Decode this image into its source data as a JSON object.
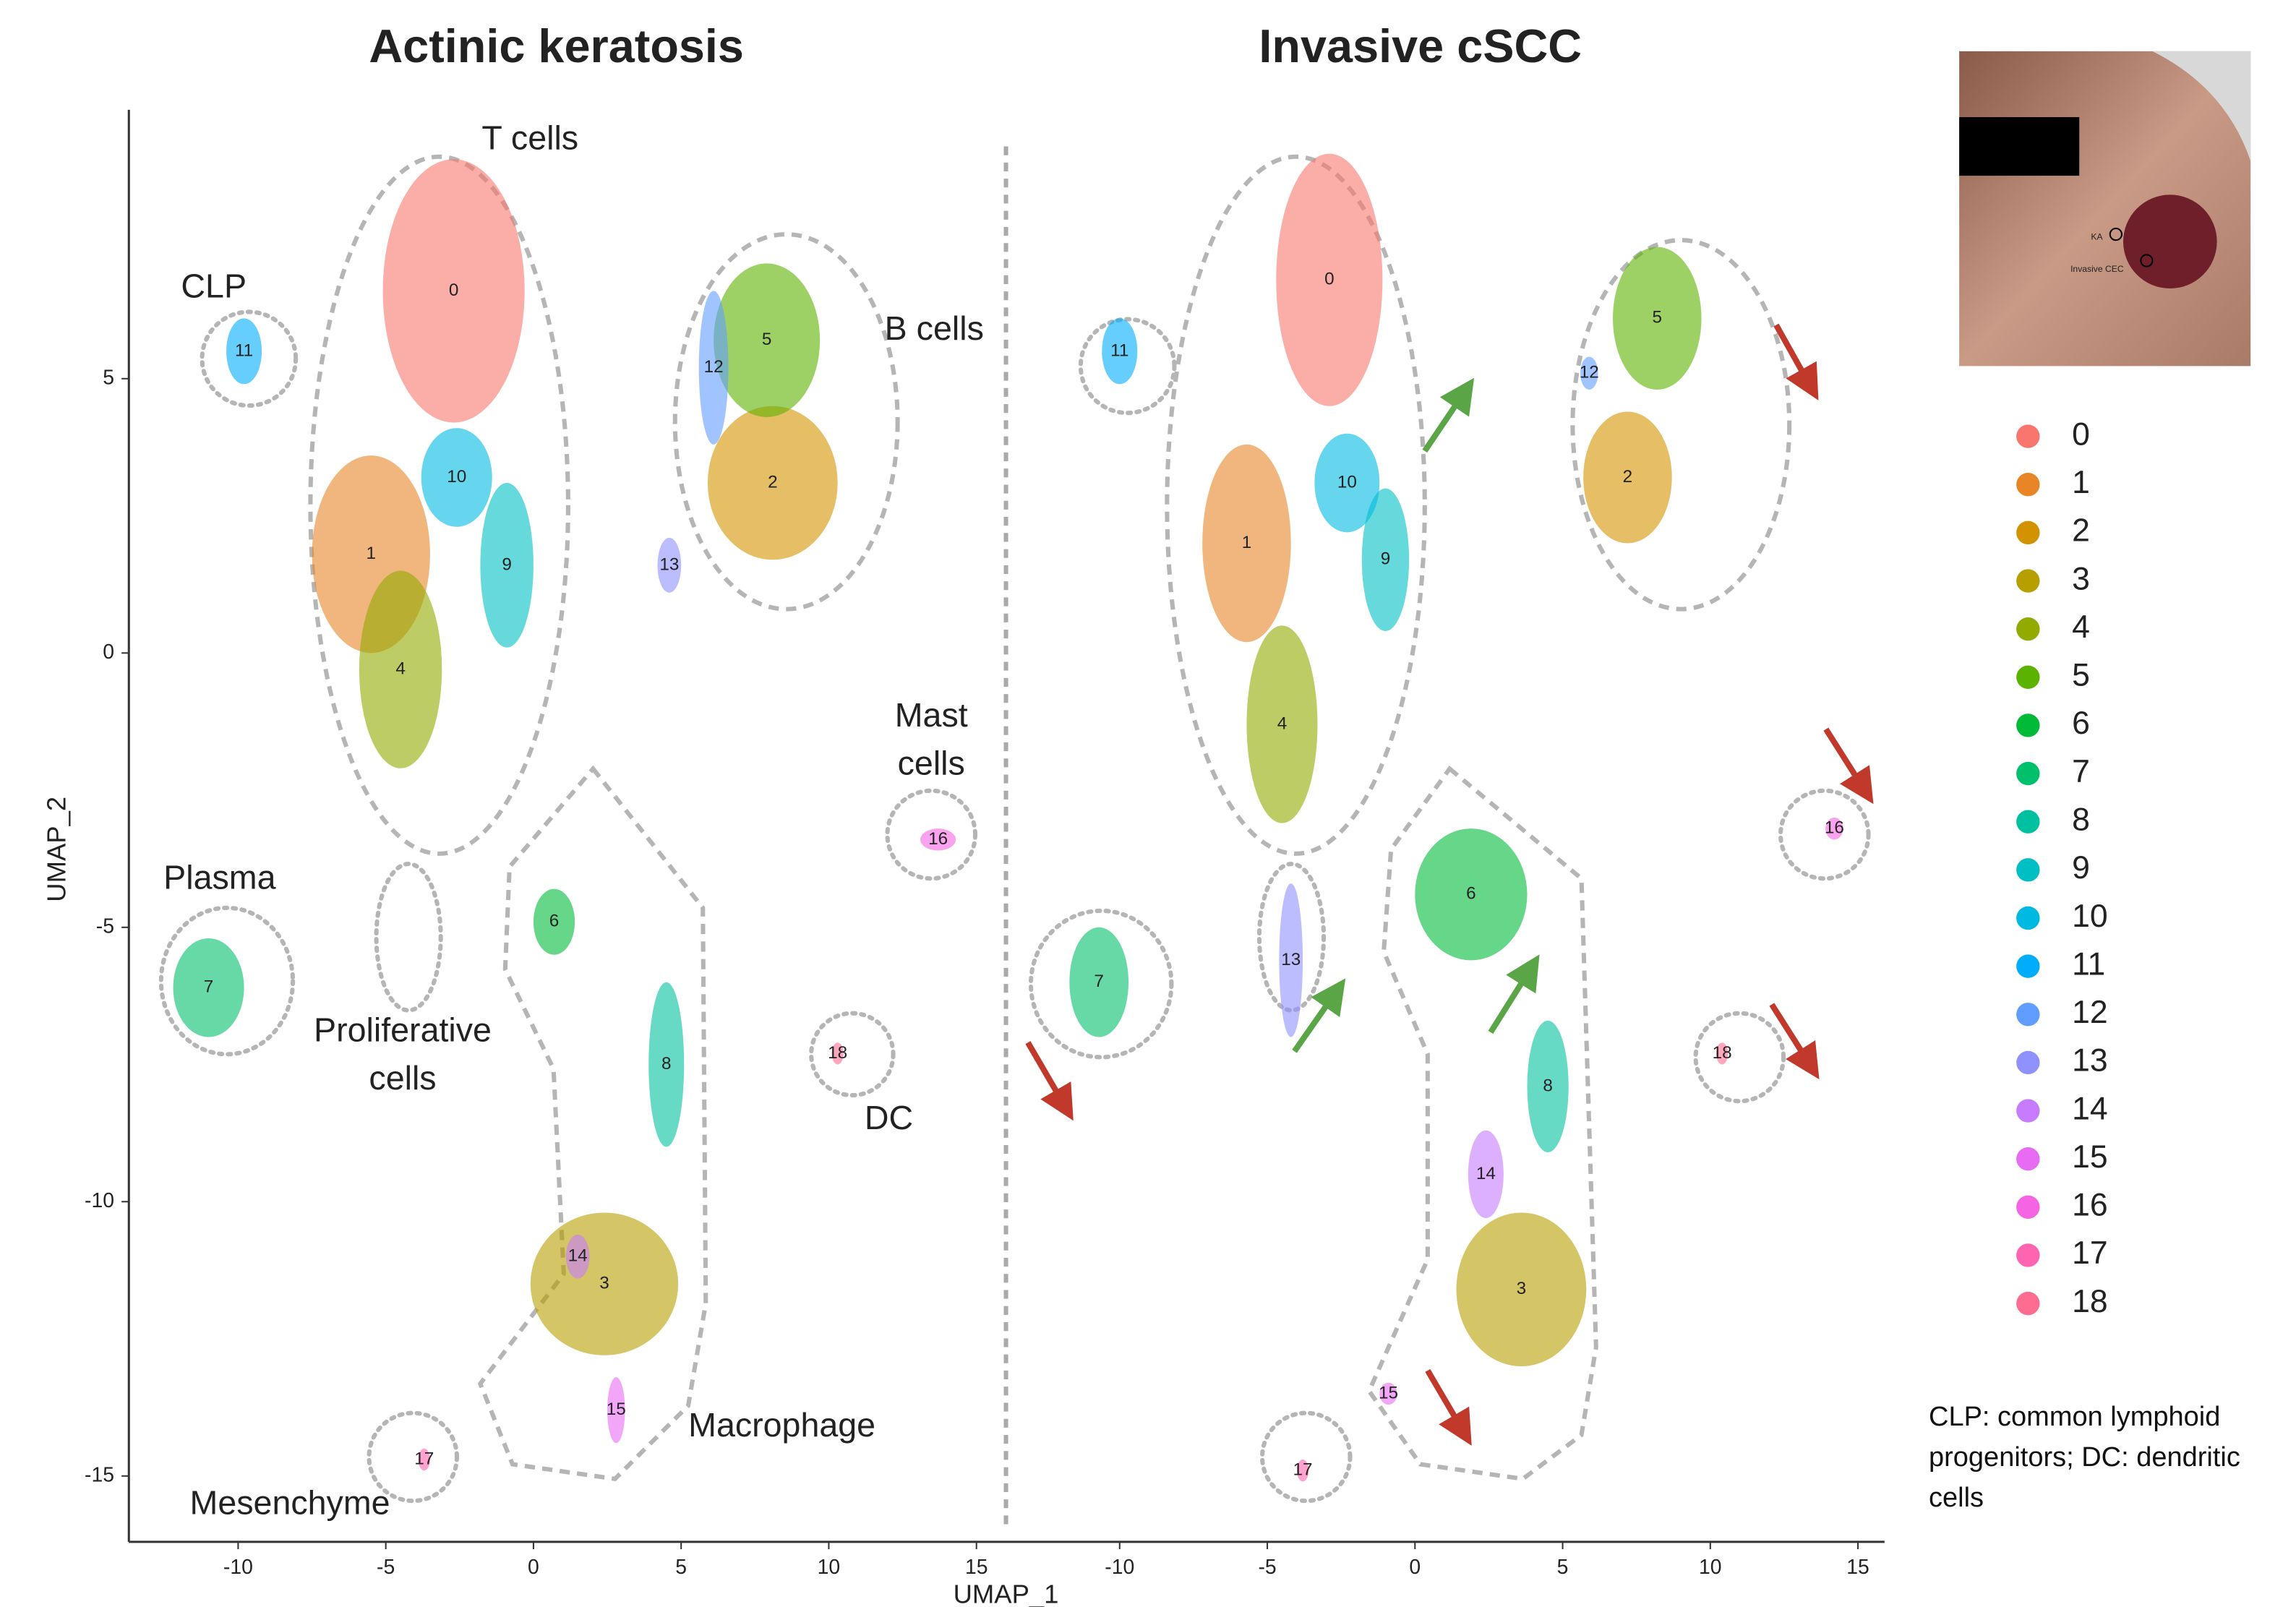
{
  "chart_data": [
    {
      "type": "scatter",
      "title": "Actinic keratosis",
      "x_label": "UMAP_1",
      "y_label": "UMAP_2",
      "xlim": [
        -13.7,
        15.9
      ],
      "ylim": [
        -16.2,
        9.9
      ],
      "xticks": [
        -10,
        -5,
        0,
        5,
        10,
        15
      ],
      "yticks": [
        5,
        0,
        -5,
        -10,
        -15
      ],
      "annotations": [
        [
          "T cells"
        ],
        [
          "CLP"
        ],
        [
          "B cells"
        ],
        [
          "Mast",
          "cells"
        ],
        [
          "Plasma"
        ],
        [
          "Proliferative",
          "cells"
        ],
        [
          "DC"
        ],
        [
          "Macrophage"
        ],
        [
          "Mesenchyme"
        ]
      ],
      "series": [
        {
          "name": "0",
          "color": "#F8766D",
          "x": [
            -2.7
          ],
          "y": [
            6.6
          ],
          "x_spread": [
            2.4
          ],
          "y_spread": [
            2.4
          ]
        },
        {
          "name": "1",
          "color": "#E88526",
          "x": [
            -5.5
          ],
          "y": [
            1.8
          ],
          "x_spread": [
            2.0
          ],
          "y_spread": [
            1.8
          ]
        },
        {
          "name": "2",
          "color": "#D39200",
          "x": [
            8.1
          ],
          "y": [
            3.1
          ],
          "x_spread": [
            2.2
          ],
          "y_spread": [
            1.4
          ]
        },
        {
          "name": "3",
          "color": "#B79F00",
          "x": [
            2.4
          ],
          "y": [
            -11.5
          ],
          "x_spread": [
            2.5
          ],
          "y_spread": [
            1.3
          ]
        },
        {
          "name": "4",
          "color": "#93AA00",
          "x": [
            -4.5
          ],
          "y": [
            -0.3
          ],
          "x_spread": [
            1.4
          ],
          "y_spread": [
            1.8
          ]
        },
        {
          "name": "5",
          "color": "#5BB300",
          "x": [
            7.9
          ],
          "y": [
            5.7
          ],
          "x_spread": [
            1.8
          ],
          "y_spread": [
            1.4
          ]
        },
        {
          "name": "6",
          "color": "#00BA38",
          "x": [
            0.7
          ],
          "y": [
            -4.9
          ],
          "x_spread": [
            0.7
          ],
          "y_spread": [
            0.6
          ]
        },
        {
          "name": "7",
          "color": "#00C06B",
          "x": [
            -11.0
          ],
          "y": [
            -6.1
          ],
          "x_spread": [
            1.2
          ],
          "y_spread": [
            0.9
          ]
        },
        {
          "name": "8",
          "color": "#00C19F",
          "x": [
            4.5
          ],
          "y": [
            -7.5
          ],
          "x_spread": [
            0.6
          ],
          "y_spread": [
            1.5
          ]
        },
        {
          "name": "9",
          "color": "#00BFC4",
          "x": [
            -0.9
          ],
          "y": [
            1.6
          ],
          "x_spread": [
            0.9
          ],
          "y_spread": [
            1.5
          ]
        },
        {
          "name": "10",
          "color": "#00B9E3",
          "x": [
            -2.6
          ],
          "y": [
            3.2
          ],
          "x_spread": [
            1.2
          ],
          "y_spread": [
            0.9
          ]
        },
        {
          "name": "11",
          "color": "#00ADFA",
          "x": [
            -9.8
          ],
          "y": [
            5.5
          ],
          "x_spread": [
            0.6
          ],
          "y_spread": [
            0.6
          ]
        },
        {
          "name": "12",
          "color": "#619CFF",
          "x": [
            6.1
          ],
          "y": [
            5.2
          ],
          "x_spread": [
            0.5
          ],
          "y_spread": [
            1.4
          ]
        },
        {
          "name": "13",
          "color": "#8F91FF",
          "x": [
            4.6
          ],
          "y": [
            1.6
          ],
          "x_spread": [
            0.4
          ],
          "y_spread": [
            0.5
          ]
        },
        {
          "name": "14",
          "color": "#C77CFF",
          "x": [
            1.5
          ],
          "y": [
            -11.0
          ],
          "x_spread": [
            0.4
          ],
          "y_spread": [
            0.4
          ]
        },
        {
          "name": "15",
          "color": "#E76BF3",
          "x": [
            2.8
          ],
          "y": [
            -13.8
          ],
          "x_spread": [
            0.3
          ],
          "y_spread": [
            0.6
          ]
        },
        {
          "name": "16",
          "color": "#F564E3",
          "x": [
            13.7
          ],
          "y": [
            -3.4
          ],
          "x_spread": [
            0.6
          ],
          "y_spread": [
            0.2
          ]
        },
        {
          "name": "17",
          "color": "#FF64B0",
          "x": [
            -3.7
          ],
          "y": [
            -14.7
          ],
          "x_spread": [
            0.2
          ],
          "y_spread": [
            0.2
          ]
        },
        {
          "name": "18",
          "color": "#FF6C91",
          "x": [
            10.3
          ],
          "y": [
            -7.3
          ],
          "x_spread": [
            0.2
          ],
          "y_spread": [
            0.2
          ]
        }
      ]
    },
    {
      "type": "scatter",
      "title": "Invasive cSCC",
      "xlim": [
        -13.8,
        15.9
      ],
      "ylim": [
        -16.2,
        9.9
      ],
      "xticks": [
        -10,
        -5,
        0,
        5,
        10,
        15
      ],
      "series": [
        {
          "name": "0",
          "color": "#F8766D",
          "x": [
            -2.9
          ],
          "y": [
            6.8
          ],
          "x_spread": [
            1.8
          ],
          "y_spread": [
            2.3
          ]
        },
        {
          "name": "1",
          "color": "#E88526",
          "x": [
            -5.7
          ],
          "y": [
            2.0
          ],
          "x_spread": [
            1.5
          ],
          "y_spread": [
            1.8
          ]
        },
        {
          "name": "2",
          "color": "#D39200",
          "x": [
            7.2
          ],
          "y": [
            3.2
          ],
          "x_spread": [
            1.5
          ],
          "y_spread": [
            1.2
          ]
        },
        {
          "name": "3",
          "color": "#B79F00",
          "x": [
            3.6
          ],
          "y": [
            -11.6
          ],
          "x_spread": [
            2.2
          ],
          "y_spread": [
            1.4
          ]
        },
        {
          "name": "4",
          "color": "#93AA00",
          "x": [
            -4.5
          ],
          "y": [
            -1.3
          ],
          "x_spread": [
            1.2
          ],
          "y_spread": [
            1.8
          ]
        },
        {
          "name": "5",
          "color": "#5BB300",
          "x": [
            8.2
          ],
          "y": [
            6.1
          ],
          "x_spread": [
            1.5
          ],
          "y_spread": [
            1.3
          ]
        },
        {
          "name": "6",
          "color": "#00BA38",
          "x": [
            1.9
          ],
          "y": [
            -4.4
          ],
          "x_spread": [
            1.9
          ],
          "y_spread": [
            1.2
          ]
        },
        {
          "name": "7",
          "color": "#00C06B",
          "x": [
            -10.7
          ],
          "y": [
            -6.0
          ],
          "x_spread": [
            1.0
          ],
          "y_spread": [
            1.0
          ]
        },
        {
          "name": "8",
          "color": "#00C19F",
          "x": [
            4.5
          ],
          "y": [
            -7.9
          ],
          "x_spread": [
            0.7
          ],
          "y_spread": [
            1.2
          ]
        },
        {
          "name": "9",
          "color": "#00BFC4",
          "x": [
            -1.0
          ],
          "y": [
            1.7
          ],
          "x_spread": [
            0.8
          ],
          "y_spread": [
            1.3
          ]
        },
        {
          "name": "10",
          "color": "#00B9E3",
          "x": [
            -2.3
          ],
          "y": [
            3.1
          ],
          "x_spread": [
            1.1
          ],
          "y_spread": [
            0.9
          ]
        },
        {
          "name": "11",
          "color": "#00ADFA",
          "x": [
            -10.0
          ],
          "y": [
            5.5
          ],
          "x_spread": [
            0.6
          ],
          "y_spread": [
            0.6
          ]
        },
        {
          "name": "12",
          "color": "#619CFF",
          "x": [
            5.9
          ],
          "y": [
            5.1
          ],
          "x_spread": [
            0.3
          ],
          "y_spread": [
            0.3
          ]
        },
        {
          "name": "13",
          "color": "#8F91FF",
          "x": [
            -4.2
          ],
          "y": [
            -5.6
          ],
          "x_spread": [
            0.4
          ],
          "y_spread": [
            1.4
          ]
        },
        {
          "name": "14",
          "color": "#C77CFF",
          "x": [
            2.4
          ],
          "y": [
            -9.5
          ],
          "x_spread": [
            0.6
          ],
          "y_spread": [
            0.8
          ]
        },
        {
          "name": "15",
          "color": "#E76BF3",
          "x": [
            -0.9
          ],
          "y": [
            -13.5
          ],
          "x_spread": [
            0.3
          ],
          "y_spread": [
            0.2
          ]
        },
        {
          "name": "16",
          "color": "#F564E3",
          "x": [
            14.2
          ],
          "y": [
            -3.2
          ],
          "x_spread": [
            0.3
          ],
          "y_spread": [
            0.2
          ]
        },
        {
          "name": "17",
          "color": "#FF64B0",
          "x": [
            -3.8
          ],
          "y": [
            -14.9
          ],
          "x_spread": [
            0.2
          ],
          "y_spread": [
            0.2
          ]
        },
        {
          "name": "18",
          "color": "#FF6C91",
          "x": [
            10.4
          ],
          "y": [
            -7.3
          ],
          "x_spread": [
            0.2
          ],
          "y_spread": [
            0.2
          ]
        }
      ]
    }
  ],
  "photo": {
    "labels": [
      "KA",
      "Invasive CEC"
    ]
  },
  "footnote": "CLP: common lymphoid progenitors; DC: dendritic cells"
}
